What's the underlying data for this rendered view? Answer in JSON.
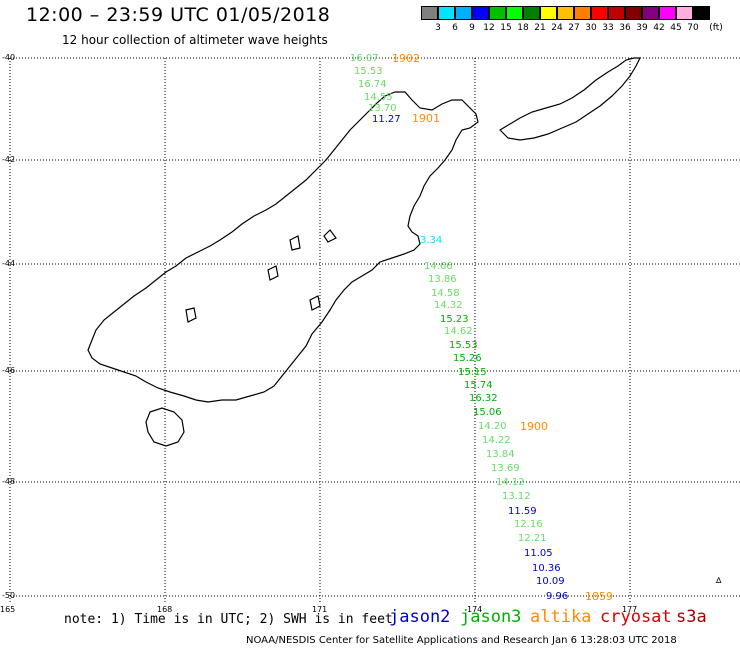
{
  "header": {
    "title": "12:00 – 23:59 UTC 01/05/2018",
    "subtitle": "12 hour collection of altimeter wave heights"
  },
  "colorbar": {
    "unit": "(ft)",
    "colors": [
      "#808080",
      "#00e5ff",
      "#00b0ff",
      "#0000ff",
      "#00c000",
      "#00ff00",
      "#008000",
      "#ffff00",
      "#ffc000",
      "#ff8000",
      "#ff0000",
      "#c00000",
      "#800000",
      "#800080",
      "#ff00ff",
      "#ffb0e0",
      "#000000"
    ],
    "labels": [
      "3",
      "6",
      "9",
      "12",
      "15",
      "18",
      "21",
      "24",
      "27",
      "30",
      "33",
      "36",
      "39",
      "42",
      "45",
      "70"
    ]
  },
  "axes": {
    "lat_labels": [
      "-40",
      "-42",
      "-44",
      "-46",
      "-48",
      "-50"
    ],
    "lon_labels": [
      "165",
      "168",
      "171",
      "174",
      "177"
    ]
  },
  "passes": [
    {
      "label": "1902",
      "color": "#ff8c00"
    },
    {
      "label": "1901",
      "color": "#ff8c00"
    },
    {
      "label": "1900",
      "color": "#ff8c00"
    },
    {
      "label": "1859",
      "color": "#ff8c00"
    }
  ],
  "observations": [
    {
      "value": "16.07",
      "color": "#66dd66"
    },
    {
      "value": "15.53",
      "color": "#66dd66"
    },
    {
      "value": "16.74",
      "color": "#66dd66"
    },
    {
      "value": "14.55",
      "color": "#66dd66"
    },
    {
      "value": "13.70",
      "color": "#66dd66"
    },
    {
      "value": "11.27",
      "color": "#0000cc"
    },
    {
      "value": "3.34",
      "color": "#00e5ff"
    },
    {
      "value": "14.66",
      "color": "#66dd66"
    },
    {
      "value": "13.86",
      "color": "#66dd66"
    },
    {
      "value": "14.58",
      "color": "#66dd66"
    },
    {
      "value": "14.32",
      "color": "#66dd66"
    },
    {
      "value": "15.23",
      "color": "#00b000"
    },
    {
      "value": "14.62",
      "color": "#66dd66"
    },
    {
      "value": "15.53",
      "color": "#00b000"
    },
    {
      "value": "15.26",
      "color": "#00b000"
    },
    {
      "value": "15.15",
      "color": "#00b000"
    },
    {
      "value": "15.74",
      "color": "#00b000"
    },
    {
      "value": "16.32",
      "color": "#00b000"
    },
    {
      "value": "15.06",
      "color": "#00b000"
    },
    {
      "value": "14.20",
      "color": "#66dd66"
    },
    {
      "value": "14.22",
      "color": "#66dd66"
    },
    {
      "value": "13.84",
      "color": "#66dd66"
    },
    {
      "value": "13.69",
      "color": "#66dd66"
    },
    {
      "value": "14.12",
      "color": "#66dd66"
    },
    {
      "value": "13.12",
      "color": "#66dd66"
    },
    {
      "value": "11.59",
      "color": "#0000cc"
    },
    {
      "value": "12.16",
      "color": "#66dd66"
    },
    {
      "value": "12.21",
      "color": "#66dd66"
    },
    {
      "value": "11.05",
      "color": "#0000cc"
    },
    {
      "value": "10.36",
      "color": "#0000cc"
    },
    {
      "value": "10.09",
      "color": "#0000cc"
    },
    {
      "value": "9.96",
      "color": "#0000cc"
    }
  ],
  "footer": {
    "note": "note: 1) Time is in UTC; 2) SWH is in feet",
    "satellites": [
      {
        "name": "jason2",
        "color": "#0000cc"
      },
      {
        "name": "jason3",
        "color": "#00b000"
      },
      {
        "name": "altika",
        "color": "#ff8c00"
      },
      {
        "name": "cryosat",
        "color": "#dd0000"
      },
      {
        "name": "s3a",
        "color": "#aa0000"
      }
    ],
    "credit": "NOAA/NESDIS Center for Satellite Applications and Research   Jan  6 13:28:03 UTC 2018"
  }
}
